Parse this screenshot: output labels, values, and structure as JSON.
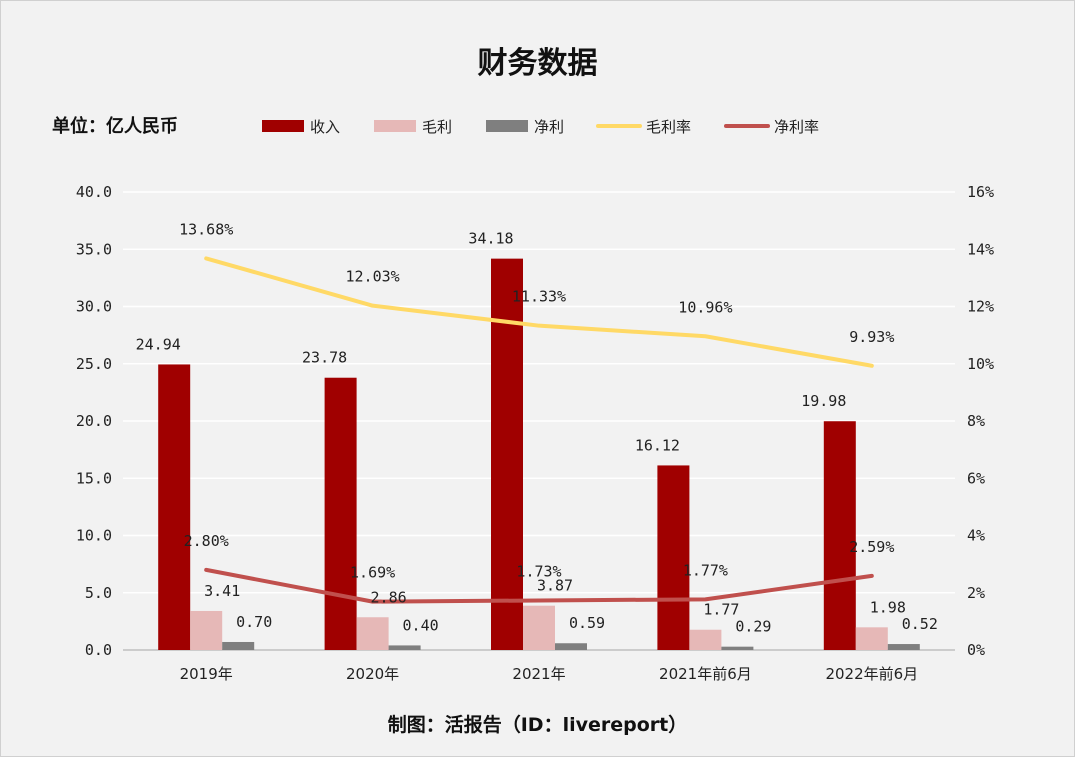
{
  "title": "财务数据",
  "unit": "单位：亿人民币",
  "footer": "制图：活报告（ID：livereport）",
  "chart_data": {
    "type": "bar",
    "categories": [
      "2019年",
      "2020年",
      "2021年",
      "2021年前6月",
      "2022年前6月"
    ],
    "series": [
      {
        "name": "收入",
        "kind": "bar",
        "axis": "left",
        "color": "#a00000",
        "values": [
          24.94,
          23.78,
          34.18,
          16.12,
          19.98
        ],
        "labels": [
          "24.94",
          "23.78",
          "34.18",
          "16.12",
          "19.98"
        ]
      },
      {
        "name": "毛利",
        "kind": "bar",
        "axis": "left",
        "color": "#e6b8b7",
        "values": [
          3.41,
          2.86,
          3.87,
          1.77,
          1.98
        ],
        "labels": [
          "3.41",
          "2.86",
          "3.87",
          "1.77",
          "1.98"
        ]
      },
      {
        "name": "净利",
        "kind": "bar",
        "axis": "left",
        "color": "#7f7f7f",
        "values": [
          0.7,
          0.4,
          0.59,
          0.29,
          0.52
        ],
        "labels": [
          "0.70",
          "0.40",
          "0.59",
          "0.29",
          "0.52"
        ]
      },
      {
        "name": "毛利率",
        "kind": "line",
        "axis": "right",
        "color": "#ffd966",
        "values": [
          13.68,
          12.03,
          11.33,
          10.96,
          9.93
        ],
        "labels": [
          "13.68%",
          "12.03%",
          "11.33%",
          "10.96%",
          "9.93%"
        ]
      },
      {
        "name": "净利率",
        "kind": "line",
        "axis": "right",
        "color": "#c0504d",
        "values": [
          2.8,
          1.69,
          1.73,
          1.77,
          2.59
        ],
        "labels": [
          "2.80%",
          "1.69%",
          "1.73%",
          "1.77%",
          "2.59%"
        ]
      }
    ],
    "y_left": {
      "min": 0,
      "max": 40,
      "ticks": [
        "0.0",
        "5.0",
        "10.0",
        "15.0",
        "20.0",
        "25.0",
        "30.0",
        "35.0",
        "40.0"
      ]
    },
    "y_right": {
      "min": 0,
      "max": 16,
      "ticks": [
        "0%",
        "2%",
        "4%",
        "6%",
        "8%",
        "10%",
        "12%",
        "14%",
        "16%"
      ]
    },
    "grid": true,
    "legend_position": "top"
  }
}
